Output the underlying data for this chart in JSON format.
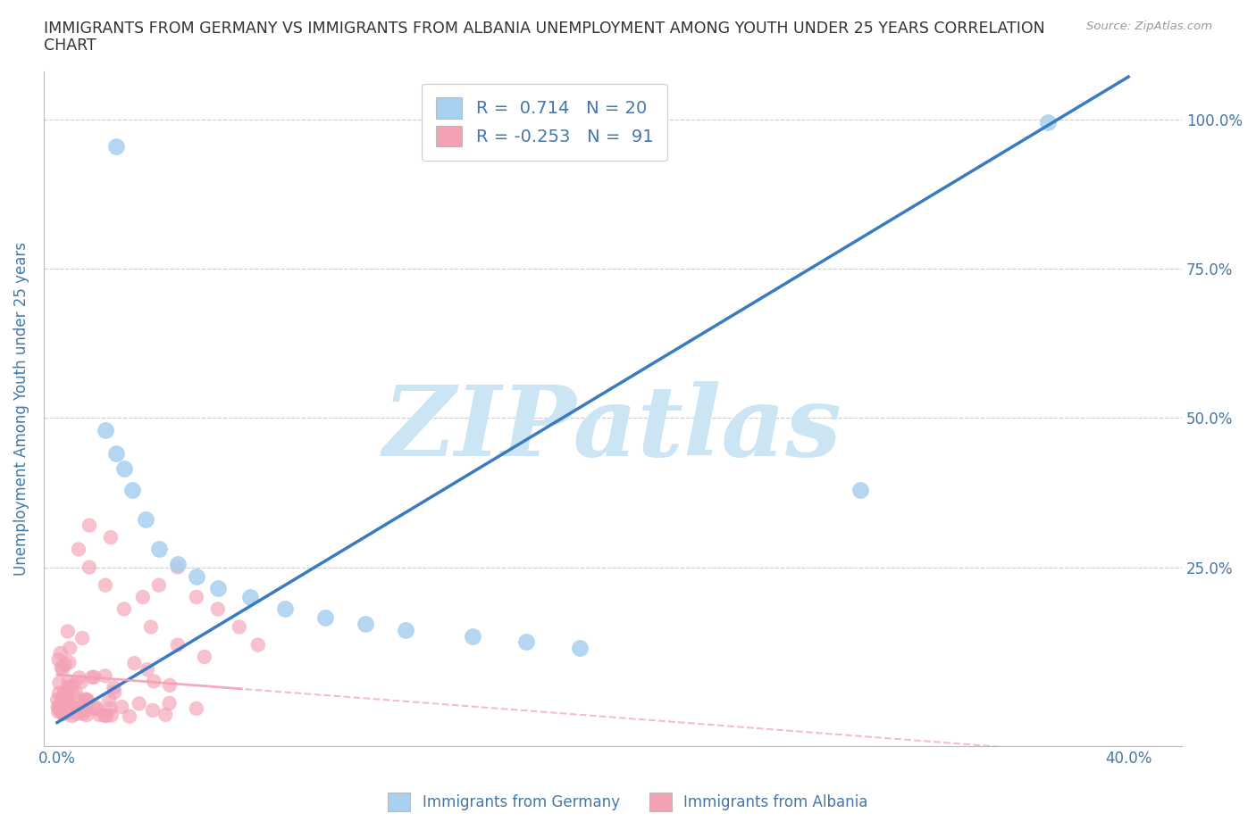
{
  "title_line1": "IMMIGRANTS FROM GERMANY VS IMMIGRANTS FROM ALBANIA UNEMPLOYMENT AMONG YOUTH UNDER 25 YEARS CORRELATION",
  "title_line2": "CHART",
  "source": "Source: ZipAtlas.com",
  "ylabel": "Unemployment Among Youth under 25 years",
  "x_tick_positions": [
    0.0,
    0.1,
    0.2,
    0.3,
    0.4
  ],
  "x_tick_labels": [
    "0.0%",
    "",
    "",
    "",
    "40.0%"
  ],
  "y_tick_positions": [
    0.0,
    0.25,
    0.5,
    0.75,
    1.0
  ],
  "y_tick_labels": [
    "",
    "25.0%",
    "50.0%",
    "75.0%",
    "100.0%"
  ],
  "xlim": [
    -0.005,
    0.42
  ],
  "ylim": [
    -0.05,
    1.08
  ],
  "legend_label_germany": "Immigrants from Germany",
  "legend_label_albania": "Immigrants from Albania",
  "R_germany": 0.714,
  "N_germany": 20,
  "R_albania": -0.253,
  "N_albania": 91,
  "color_germany": "#a8d0f0",
  "color_albania": "#f4a0b5",
  "trendline_germany_color": "#3a7bbf",
  "trendline_albania_color": "#f4a0b5",
  "watermark": "ZIPatlas",
  "watermark_color": "#cce5f5",
  "background_color": "#ffffff",
  "grid_color": "#cccccc",
  "title_color": "#333333",
  "axis_label_color": "#4477aa",
  "tick_label_color": "#4477aa",
  "legend_text_color": "#4477aa",
  "germany_points": [
    [
      0.022,
      0.955
    ],
    [
      0.018,
      0.48
    ],
    [
      0.022,
      0.44
    ],
    [
      0.025,
      0.415
    ],
    [
      0.028,
      0.38
    ],
    [
      0.033,
      0.33
    ],
    [
      0.038,
      0.28
    ],
    [
      0.045,
      0.255
    ],
    [
      0.052,
      0.235
    ],
    [
      0.06,
      0.215
    ],
    [
      0.072,
      0.2
    ],
    [
      0.085,
      0.18
    ],
    [
      0.1,
      0.165
    ],
    [
      0.115,
      0.155
    ],
    [
      0.13,
      0.145
    ],
    [
      0.155,
      0.135
    ],
    [
      0.175,
      0.125
    ],
    [
      0.195,
      0.115
    ],
    [
      0.37,
      0.995
    ],
    [
      0.3,
      0.38
    ]
  ],
  "albania_dense_seed": 42,
  "albania_dense_count": 75,
  "albania_extra_points": [
    [
      0.008,
      0.28
    ],
    [
      0.012,
      0.32
    ],
    [
      0.018,
      0.22
    ],
    [
      0.025,
      0.18
    ],
    [
      0.032,
      0.2
    ],
    [
      0.038,
      0.22
    ],
    [
      0.045,
      0.25
    ],
    [
      0.052,
      0.2
    ],
    [
      0.06,
      0.18
    ],
    [
      0.068,
      0.15
    ],
    [
      0.075,
      0.12
    ],
    [
      0.012,
      0.25
    ],
    [
      0.02,
      0.3
    ],
    [
      0.035,
      0.15
    ],
    [
      0.045,
      0.12
    ],
    [
      0.055,
      0.1
    ]
  ]
}
